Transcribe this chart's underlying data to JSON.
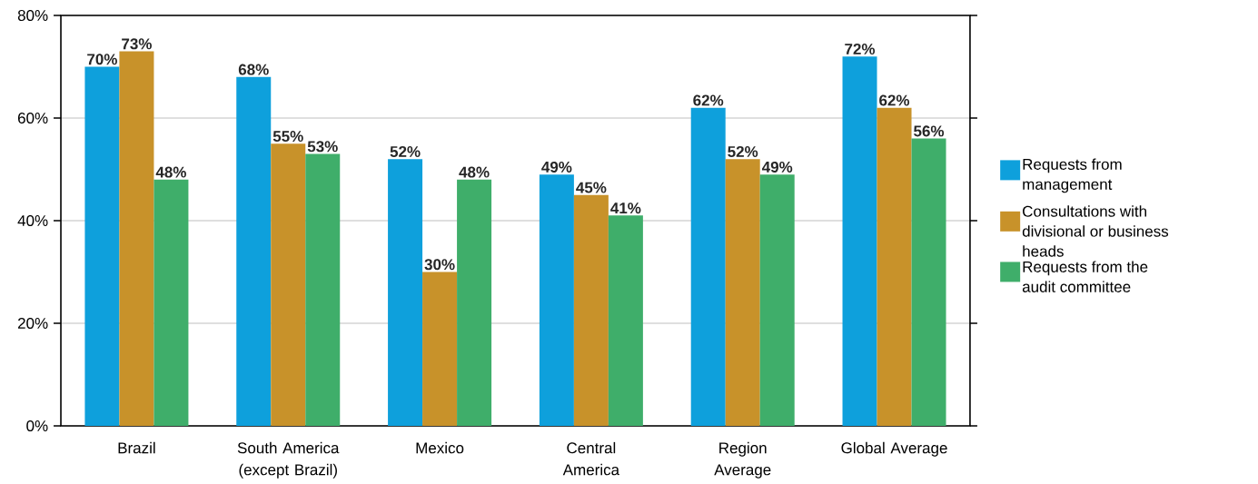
{
  "chart_data": {
    "type": "bar",
    "categories": [
      "Brazil",
      "South America (except Brazil)",
      "Mexico",
      "Central America",
      "Region Average",
      "Global Average"
    ],
    "series": [
      {
        "name": "Requests from management",
        "color": "#0ea0dc",
        "values": [
          70,
          68,
          52,
          49,
          62,
          72
        ],
        "value_labels": [
          "70%",
          "68%",
          "52%",
          "49%",
          "62%",
          "72%"
        ]
      },
      {
        "name": "Consultations with divisional or business heads",
        "color": "#c8922a",
        "values": [
          73,
          55,
          30,
          45,
          52,
          62
        ],
        "value_labels": [
          "73%",
          "55%",
          "30%",
          "45%",
          "52%",
          "62%"
        ]
      },
      {
        "name": "Requests from the audit committee",
        "color": "#3fae6a",
        "values": [
          48,
          53,
          48,
          41,
          49,
          56
        ],
        "value_labels": [
          "48%",
          "53%",
          "48%",
          "41%",
          "49%",
          "56%"
        ]
      }
    ],
    "ylim": [
      0,
      80
    ],
    "yticks": [
      {
        "value": 0,
        "label": "0%"
      },
      {
        "value": 20,
        "label": "20%"
      },
      {
        "value": 40,
        "label": "40%"
      },
      {
        "value": 60,
        "label": "60%"
      },
      {
        "value": 80,
        "label": "80%"
      }
    ],
    "grid": "y",
    "legend": "right"
  }
}
